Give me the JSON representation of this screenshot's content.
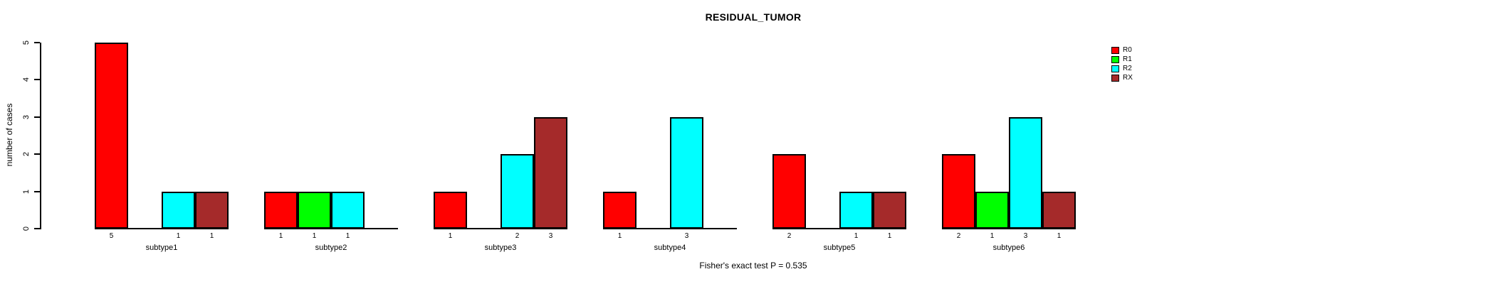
{
  "chart_data": {
    "type": "bar",
    "title": "RESIDUAL_TUMOR",
    "ylabel": "number of cases",
    "xlabel": "",
    "footnote": "Fisher's exact test P = 0.535",
    "categories": [
      "subtype1",
      "subtype2",
      "subtype3",
      "subtype4",
      "subtype5",
      "subtype6"
    ],
    "series": [
      {
        "name": "R0",
        "color": "#FF0000",
        "values": [
          5,
          1,
          1,
          1,
          2,
          2
        ]
      },
      {
        "name": "R1",
        "color": "#00FF00",
        "values": [
          0,
          1,
          0,
          0,
          0,
          1
        ]
      },
      {
        "name": "R2",
        "color": "#00FFFF",
        "values": [
          1,
          1,
          2,
          3,
          1,
          3
        ]
      },
      {
        "name": "RX",
        "color": "#A52A2A",
        "values": [
          1,
          0,
          3,
          0,
          1,
          1
        ]
      }
    ],
    "ylim": [
      0,
      5
    ],
    "yticks": [
      0,
      1,
      2,
      3,
      4,
      5
    ],
    "bar_value_labels_shown": true,
    "zero_bars_hidden": true,
    "legend_position": "right",
    "grid": false,
    "background_color": "#FFFFFF",
    "text_color": "#000000"
  }
}
